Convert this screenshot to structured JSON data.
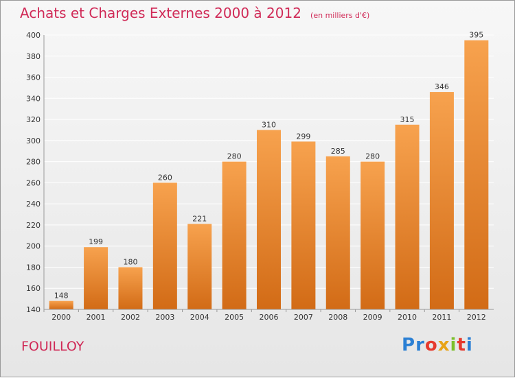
{
  "header": {
    "title": "Achats et Charges Externes 2000 à 2012",
    "subtitle": "(en milliers d'€)"
  },
  "footer": {
    "city": "FOUILLOY",
    "brand_letters": [
      "P",
      "r",
      "o",
      "x",
      "i",
      "t",
      "i"
    ],
    "brand_colors": [
      "#2a7fd4",
      "#2a7fd4",
      "#e63a2e",
      "#e8a317",
      "#7cbf2a",
      "#e63a2e",
      "#2a7fd4"
    ]
  },
  "colors": {
    "bar_top": "#f7a24e",
    "bar_bottom": "#d26b16",
    "title": "#d02a57",
    "grid": "#ffffff"
  },
  "chart_data": {
    "type": "bar",
    "categories": [
      "2000",
      "2001",
      "2002",
      "2003",
      "2004",
      "2005",
      "2006",
      "2007",
      "2008",
      "2009",
      "2010",
      "2011",
      "2012"
    ],
    "values": [
      148,
      199,
      180,
      260,
      221,
      280,
      310,
      299,
      285,
      280,
      315,
      346,
      395
    ],
    "title": "Achats et Charges Externes 2000 à 2012",
    "subtitle": "(en milliers d'€)",
    "ylim": [
      140,
      400
    ],
    "yticks": [
      140,
      160,
      180,
      200,
      220,
      240,
      260,
      280,
      300,
      320,
      340,
      360,
      380,
      400
    ],
    "grid": true
  }
}
